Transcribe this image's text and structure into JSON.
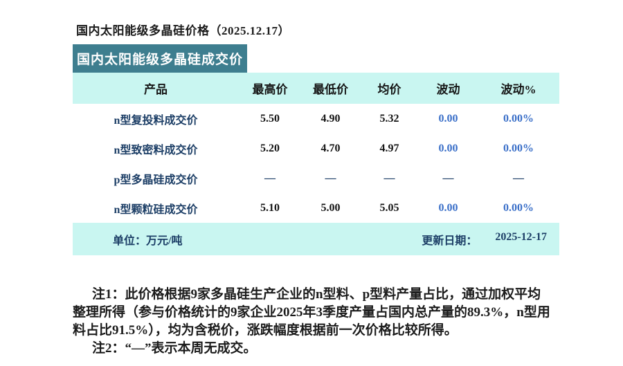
{
  "page": {
    "title": "国内太阳能级多晶硅价格（2025.12.17）",
    "banner_title": "国内太阳能级多晶硅成交价"
  },
  "table": {
    "headers": [
      "产品",
      "最高价",
      "最低价",
      "均价",
      "波动",
      "波动%"
    ],
    "rows": [
      {
        "product": "n型复投料成交价",
        "high": "5.50",
        "low": "4.90",
        "avg": "5.32",
        "change": "0.00",
        "change_pct": "0.00%"
      },
      {
        "product": "n型致密料成交价",
        "high": "5.20",
        "low": "4.70",
        "avg": "4.97",
        "change": "0.00",
        "change_pct": "0.00%"
      },
      {
        "product": "p型多晶硅成交价",
        "high": "—",
        "low": "—",
        "avg": "—",
        "change": "—",
        "change_pct": "—"
      },
      {
        "product": "n型颗粒硅成交价",
        "high": "5.10",
        "low": "5.00",
        "avg": "5.05",
        "change": "0.00",
        "change_pct": "0.00%"
      }
    ],
    "footer": {
      "unit_label": "单位：万元/吨",
      "update_label": "更新日期：",
      "update_date": "2025-12-17"
    }
  },
  "notes": {
    "line1": "注1：此价格根据9家多晶硅生产企业的n型料、p型料产量占比，通过加权平均",
    "line2": "整理所得（参与价格统计的9家企业2025年3季度产量占国内总产量的89.3%，n型用",
    "line3": "料占比91.5%），均为含税价，涨跌幅度根据前一次价格比较所得。",
    "line4": "注2：“—”表示本周无成交。"
  },
  "colors": {
    "banner_bg": "#3E7E8F",
    "band_bg": "#C9F6F1",
    "navy": "#1C3E66",
    "value_black": "#141414",
    "blue": "#3A6FC8"
  }
}
